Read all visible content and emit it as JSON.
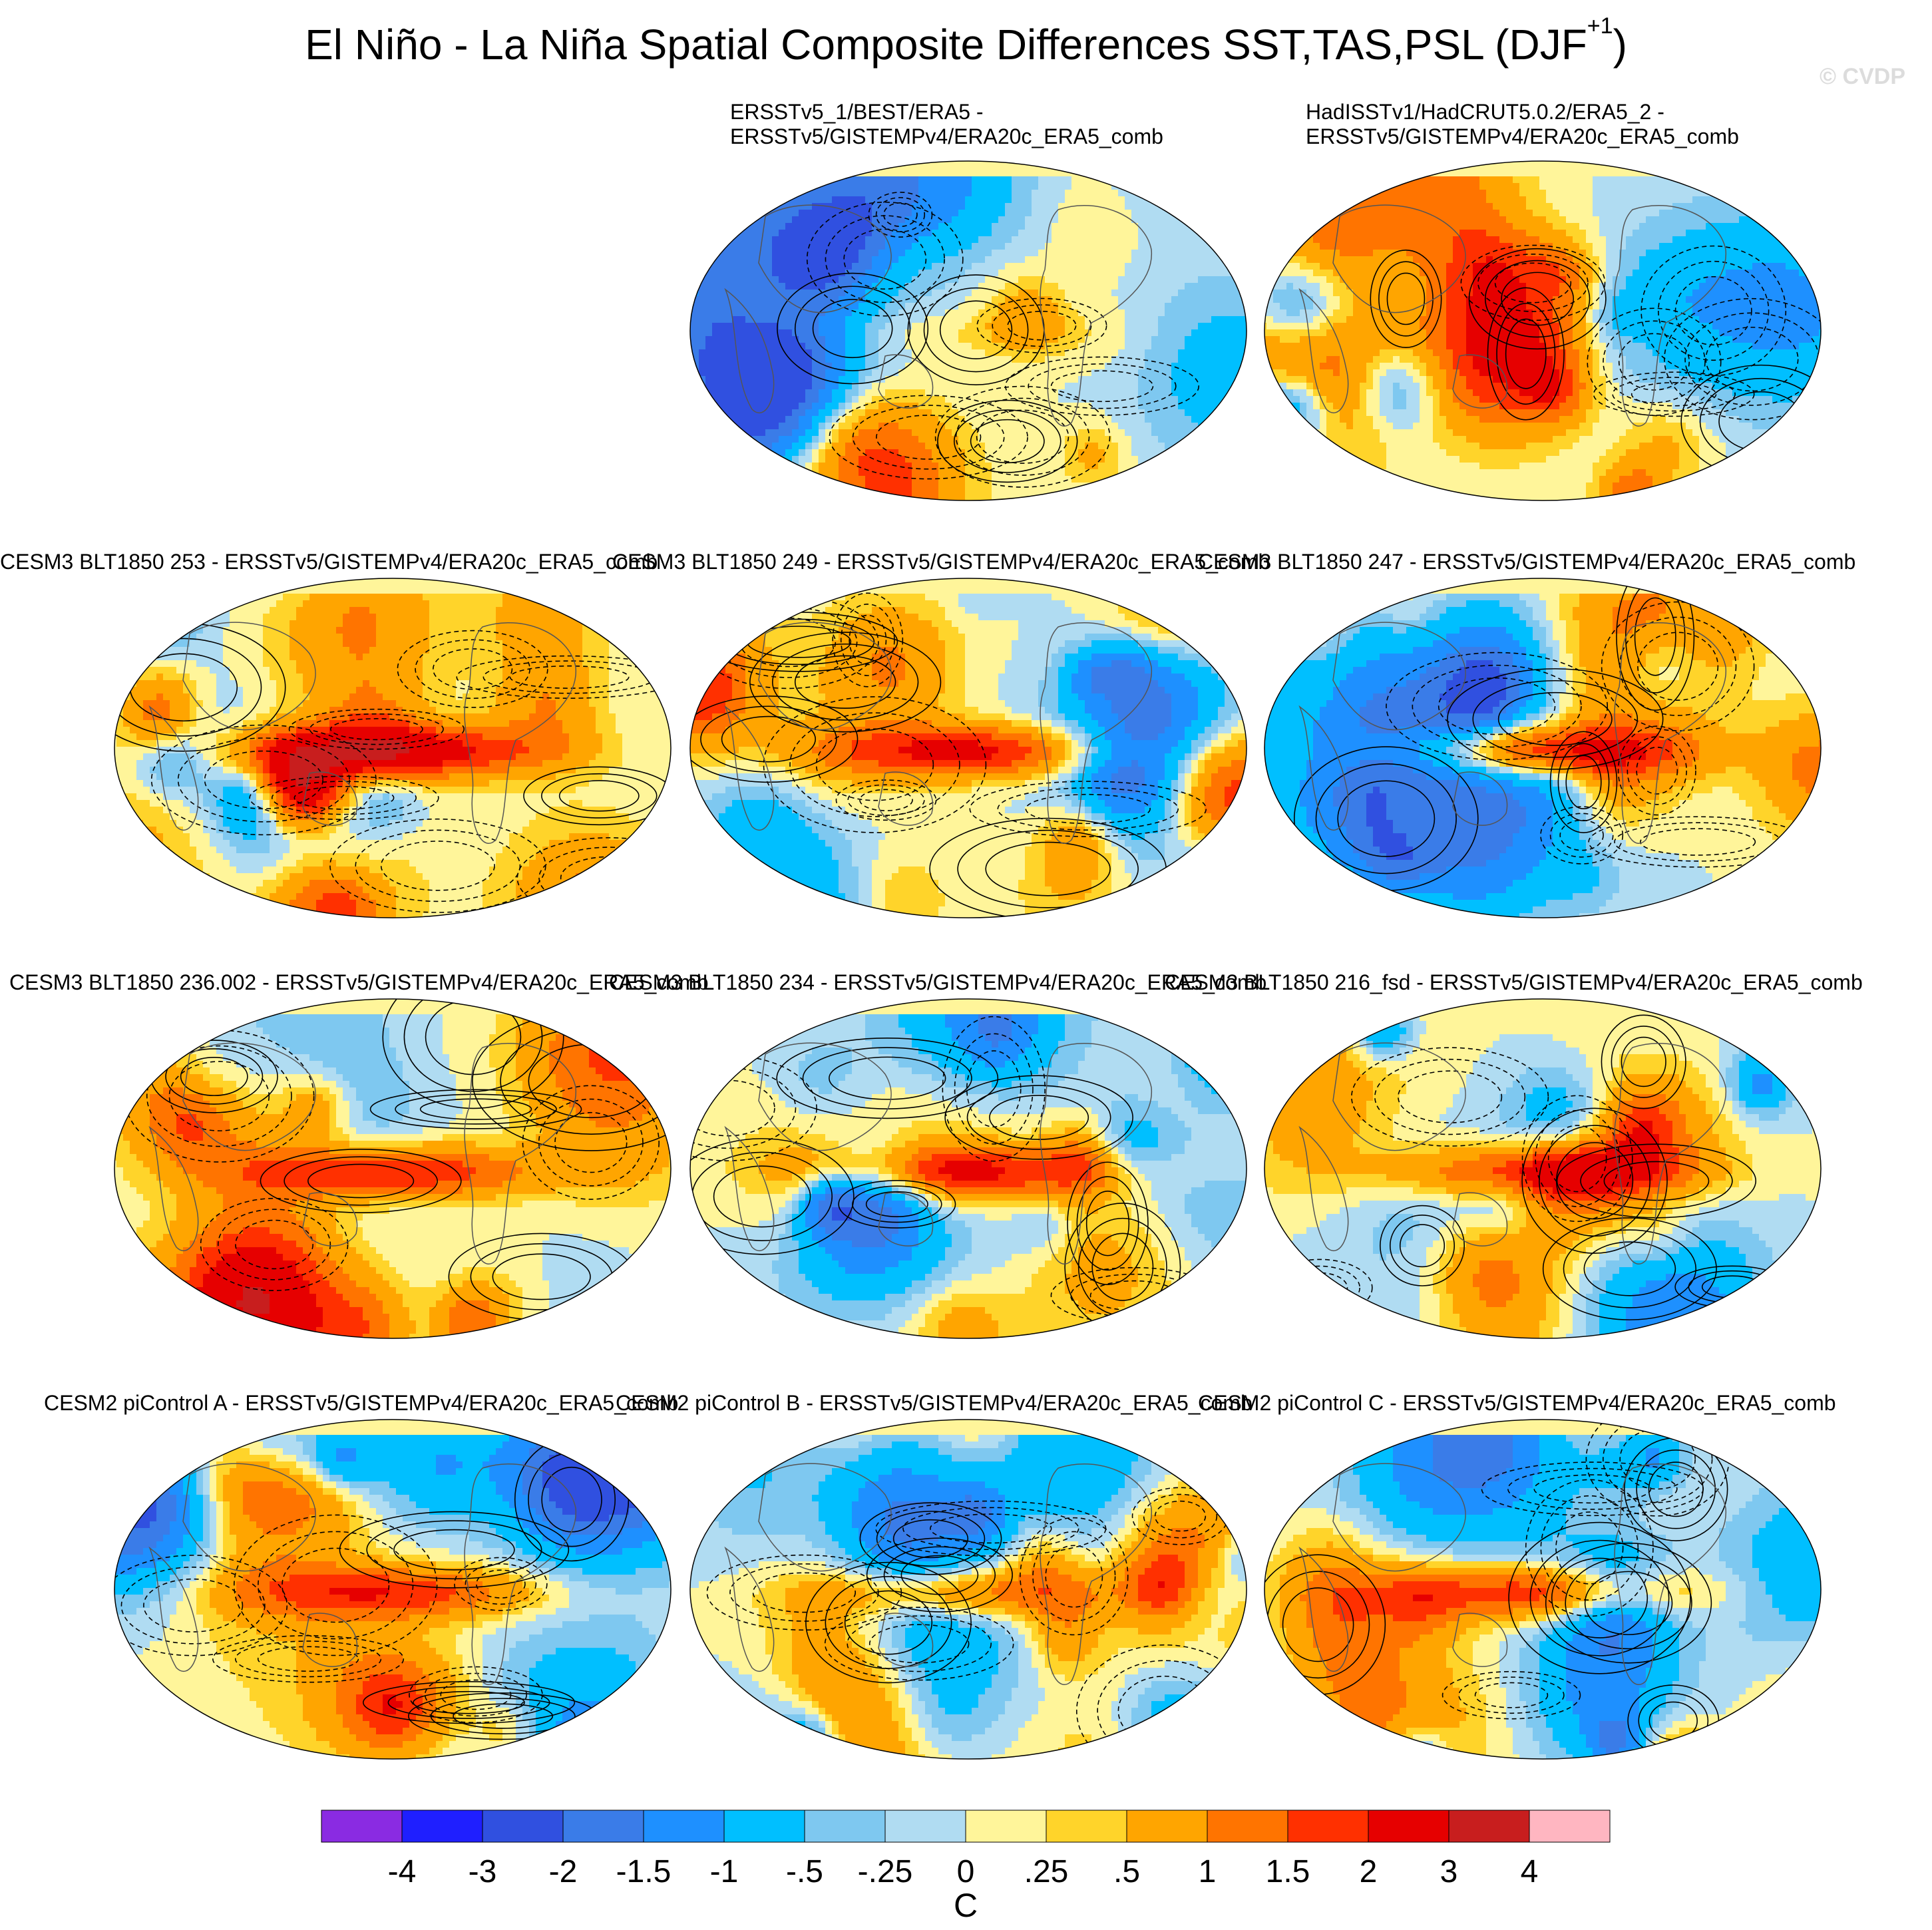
{
  "title": {
    "main": "El Niño - La Niña Spatial Composite Differences SST,TAS,PSL (DJF",
    "sup": "+1",
    "close": ")"
  },
  "watermark": "© CVDP",
  "panels": [
    {
      "title_lines": [
        "ERSSTv5_1/BEST/ERA5 -",
        "ERSSTv5/GISTEMPv4/ERA20c_ERA5_comb"
      ],
      "seed": 11,
      "enso": 0.35
    },
    {
      "title_lines": [
        "HadISSTv1/HadCRUT5.0.2/ERA5_2 -",
        "ERSSTv5/GISTEMPv4/ERA20c_ERA5_comb"
      ],
      "seed": 23,
      "enso": 0.3
    },
    {
      "title_lines": [
        "CESM3 BLT1850 253 - ERSSTv5/GISTEMPv4/ERA20c_ERA5_comb"
      ],
      "seed": 37,
      "enso": 2.6
    },
    {
      "title_lines": [
        "CESM3 BLT1850 249 - ERSSTv5/GISTEMPv4/ERA20c_ERA5_comb"
      ],
      "seed": 41,
      "enso": 2.2
    },
    {
      "title_lines": [
        "CESM3 BLT1850 247 - ERSSTv5/GISTEMPv4/ERA20c_ERA5_comb"
      ],
      "seed": 53,
      "enso": 2.3
    },
    {
      "title_lines": [
        "CESM3 BLT1850 236.002 - ERSSTv5/GISTEMPv4/ERA20c_ERA5_comb"
      ],
      "seed": 61,
      "enso": 2.1
    },
    {
      "title_lines": [
        "CESM3 BLT1850 234 - ERSSTv5/GISTEMPv4/ERA20c_ERA5_comb"
      ],
      "seed": 71,
      "enso": 2.0
    },
    {
      "title_lines": [
        "CESM3 BLT1850 216_fsd - ERSSTv5/GISTEMPv4/ERA20c_ERA5_comb"
      ],
      "seed": 83,
      "enso": 2.1
    },
    {
      "title_lines": [
        "CESM2 piControl A - ERSSTv5/GISTEMPv4/ERA20c_ERA5_comb"
      ],
      "seed": 97,
      "enso": 1.8
    },
    {
      "title_lines": [
        "CESM2 piControl B - ERSSTv5/GISTEMPv4/ERA20c_ERA5_comb"
      ],
      "seed": 101,
      "enso": 1.6
    },
    {
      "title_lines": [
        "CESM2 piControl C - ERSSTv5/GISTEMPv4/ERA20c_ERA5_comb"
      ],
      "seed": 113,
      "enso": 2.0
    }
  ],
  "colorbar": {
    "levels": [
      "-4",
      "-3",
      "-2",
      "-1.5",
      "-1",
      "-.5",
      "-.25",
      "0",
      ".25",
      ".5",
      "1",
      "1.5",
      "2",
      "3",
      "4"
    ],
    "colors": [
      "#8a2be2",
      "#1f1fff",
      "#3050e0",
      "#3a7ce8",
      "#1e90ff",
      "#00bfff",
      "#7ec8f0",
      "#b0dcf2",
      "#fff59a",
      "#ffd42a",
      "#ffa500",
      "#ff7400",
      "#ff3000",
      "#e60000",
      "#c81e1e",
      "#ffb6c1"
    ],
    "unit": "C"
  }
}
